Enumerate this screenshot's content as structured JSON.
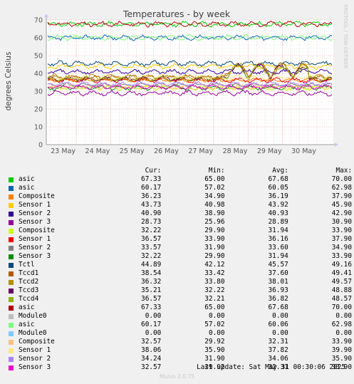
{
  "chart_data": {
    "type": "line",
    "title": "Temperatures - by week",
    "ylabel": "degrees Celsius",
    "xlabel": "",
    "ylim": [
      0,
      70
    ],
    "yticks": [
      "0",
      "10",
      "20",
      "30",
      "40",
      "50",
      "60",
      "70"
    ],
    "categories": [
      "23 May",
      "24 May",
      "25 May",
      "26 May",
      "27 May",
      "28 May",
      "29 May",
      "30 May"
    ],
    "grid": true,
    "legend_columns": [
      "Cur:",
      "Min:",
      "Avg:",
      "Max:"
    ],
    "series": [
      {
        "name": "asic",
        "color": "#00cc00",
        "cur": "67.33",
        "min": "65.00",
        "avg": "67.68",
        "max": "70.00"
      },
      {
        "name": "asic",
        "color": "#0066b3",
        "cur": "60.17",
        "min": "57.02",
        "avg": "60.05",
        "max": "62.98"
      },
      {
        "name": "Composite",
        "color": "#ff8000",
        "cur": "36.23",
        "min": "34.90",
        "avg": "36.19",
        "max": "37.90"
      },
      {
        "name": "Sensor 1",
        "color": "#ffcc00",
        "cur": "43.73",
        "min": "40.98",
        "avg": "43.92",
        "max": "45.90"
      },
      {
        "name": "Sensor 2",
        "color": "#330099",
        "cur": "40.90",
        "min": "38.90",
        "avg": "40.93",
        "max": "42.90"
      },
      {
        "name": "Sensor 3",
        "color": "#990099",
        "cur": "28.73",
        "min": "25.96",
        "avg": "28.89",
        "max": "30.90"
      },
      {
        "name": "Composite",
        "color": "#ccff00",
        "cur": "32.22",
        "min": "29.90",
        "avg": "31.94",
        "max": "33.90"
      },
      {
        "name": "Sensor 1",
        "color": "#ff0000",
        "cur": "36.57",
        "min": "33.90",
        "avg": "36.16",
        "max": "37.90"
      },
      {
        "name": "Sensor 2",
        "color": "#808080",
        "cur": "33.57",
        "min": "31.90",
        "avg": "33.60",
        "max": "34.90"
      },
      {
        "name": "Sensor 3",
        "color": "#008f00",
        "cur": "32.22",
        "min": "29.90",
        "avg": "31.94",
        "max": "33.90"
      },
      {
        "name": "Tctl",
        "color": "#00487d",
        "cur": "44.89",
        "min": "42.12",
        "avg": "45.57",
        "max": "49.16"
      },
      {
        "name": "Tccd1",
        "color": "#b35a00",
        "cur": "38.54",
        "min": "33.42",
        "avg": "37.60",
        "max": "49.41"
      },
      {
        "name": "Tccd2",
        "color": "#b38f00",
        "cur": "36.32",
        "min": "33.80",
        "avg": "38.01",
        "max": "49.57"
      },
      {
        "name": "Tccd3",
        "color": "#6b006b",
        "cur": "35.21",
        "min": "32.22",
        "avg": "36.93",
        "max": "48.88"
      },
      {
        "name": "Tccd4",
        "color": "#8fb300",
        "cur": "36.57",
        "min": "32.21",
        "avg": "36.82",
        "max": "48.57"
      },
      {
        "name": "asic",
        "color": "#b30000",
        "cur": "67.33",
        "min": "65.00",
        "avg": "67.68",
        "max": "70.00"
      },
      {
        "name": "Module0",
        "color": "#bebebe",
        "cur": "0.00",
        "min": "0.00",
        "avg": "0.00",
        "max": "0.00"
      },
      {
        "name": "asic",
        "color": "#80ff80",
        "cur": "60.17",
        "min": "57.02",
        "avg": "60.06",
        "max": "62.98"
      },
      {
        "name": "Module0",
        "color": "#80c9ff",
        "cur": "0.00",
        "min": "0.00",
        "avg": "0.00",
        "max": "0.00"
      },
      {
        "name": "Composite",
        "color": "#ffc080",
        "cur": "32.57",
        "min": "29.92",
        "avg": "32.31",
        "max": "33.90"
      },
      {
        "name": "Sensor 1",
        "color": "#ffe680",
        "cur": "38.06",
        "min": "35.90",
        "avg": "37.82",
        "max": "39.90"
      },
      {
        "name": "Sensor 2",
        "color": "#aa80ff",
        "cur": "34.24",
        "min": "31.90",
        "avg": "34.06",
        "max": "35.90"
      },
      {
        "name": "Sensor 3",
        "color": "#ee00cc",
        "cur": "32.57",
        "min": "29.92",
        "avg": "32.31",
        "max": "33.90"
      }
    ]
  },
  "watermark": "RRDTOOL / TOBI OETIKER",
  "last_update": "Last update: Sat May 31 00:30:06 2025",
  "footer": "Munin 2.0.75"
}
